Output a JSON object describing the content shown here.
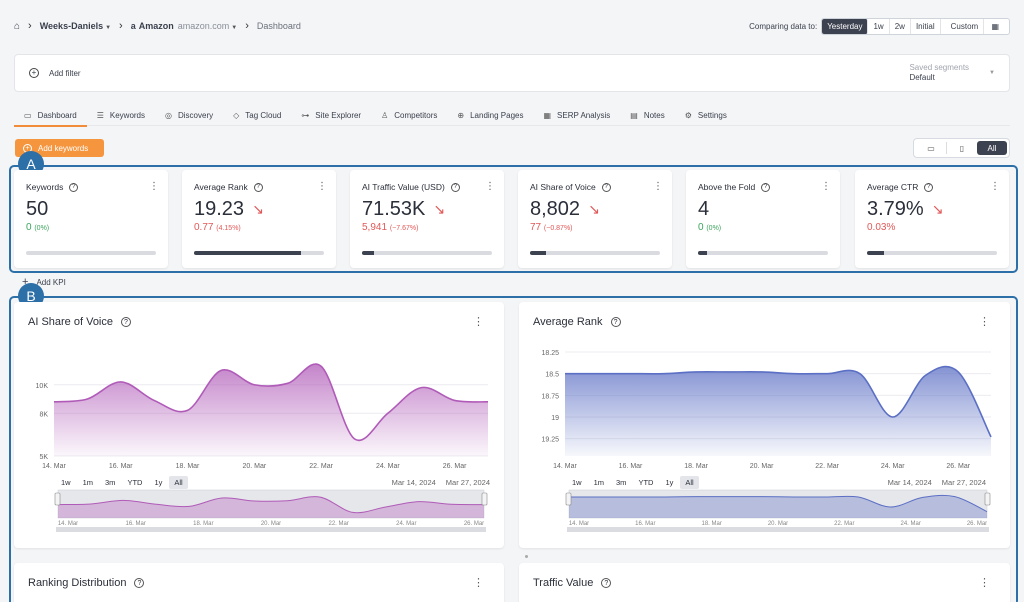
{
  "breadcrumb": {
    "project": "Weeks-Daniels",
    "site": "Amazon",
    "domain": "amazon.com",
    "page": "Dashboard"
  },
  "compare": {
    "label": "Comparing data to:",
    "options": [
      "Yesterday",
      "1w",
      "2w",
      "Initial",
      "Custom"
    ],
    "selected": "Yesterday"
  },
  "filter": {
    "add_label": "Add filter",
    "saved_label": "Saved segments",
    "saved_value": "Default"
  },
  "tabs": [
    {
      "label": "Dashboard",
      "icon": "monitor-icon"
    },
    {
      "label": "Keywords",
      "icon": "list-icon"
    },
    {
      "label": "Discovery",
      "icon": "compass-icon"
    },
    {
      "label": "Tag Cloud",
      "icon": "tag-icon"
    },
    {
      "label": "Site Explorer",
      "icon": "sitemap-icon"
    },
    {
      "label": "Competitors",
      "icon": "user-icon"
    },
    {
      "label": "Landing Pages",
      "icon": "target-icon"
    },
    {
      "label": "SERP Analysis",
      "icon": "calendar-icon"
    },
    {
      "label": "Notes",
      "icon": "note-icon"
    },
    {
      "label": "Settings",
      "icon": "gear-icon"
    }
  ],
  "add_keywords_label": "Add keywords",
  "device_all_label": "All",
  "annotations": {
    "a": "A",
    "b": "B"
  },
  "kpis": [
    {
      "title": "Keywords",
      "value": "50",
      "delta": "0",
      "delta_pct": "(0%)",
      "trend": "flat",
      "progress": 0
    },
    {
      "title": "Average Rank",
      "value": "19.23",
      "delta": "0.77",
      "delta_pct": "(4.15%)",
      "trend": "down",
      "progress": 0.82
    },
    {
      "title": "AI Traffic Value (USD)",
      "value": "71.53K",
      "delta": "5,941",
      "delta_pct": "(−7.67%)",
      "trend": "down",
      "progress": 0.09
    },
    {
      "title": "AI Share of Voice",
      "value": "8,802",
      "delta": "77",
      "delta_pct": "(−0.87%)",
      "trend": "down",
      "progress": 0.12
    },
    {
      "title": "Above the Fold",
      "value": "4",
      "delta": "0",
      "delta_pct": "(0%)",
      "trend": "flat",
      "progress": 0.07
    },
    {
      "title": "Average CTR",
      "value": "3.79%",
      "delta": "0.03%",
      "delta_pct": "",
      "trend": "down",
      "progress": 0.13
    }
  ],
  "add_kpi_label": "Add KPI",
  "zoom_buttons": [
    "1w",
    "1m",
    "3m",
    "YTD",
    "1y",
    "All"
  ],
  "zoom_selected": "All",
  "range": {
    "from": "Mar 14, 2024",
    "to": "Mar 27, 2024"
  },
  "navigator_labels": [
    "14. Mar",
    "16. Mar",
    "18. Mar",
    "20. Mar",
    "22. Mar",
    "24. Mar",
    "26. Mar"
  ],
  "bottom_panels": [
    "Ranking Distribution",
    "Traffic Value"
  ],
  "colors": {
    "accent": "#f5963f",
    "annotation": "#2d6fa7",
    "sov": "#b05bb8",
    "rank": "#5b6fc4"
  },
  "chart_data": [
    {
      "type": "area",
      "title": "AI Share of Voice",
      "x": [
        "14. Mar",
        "15. Mar",
        "16. Mar",
        "17. Mar",
        "18. Mar",
        "19. Mar",
        "20. Mar",
        "21. Mar",
        "22. Mar",
        "23. Mar",
        "24. Mar",
        "25. Mar",
        "26. Mar",
        "27. Mar"
      ],
      "values": [
        8800,
        9000,
        10200,
        8900,
        8200,
        11000,
        10000,
        10100,
        11300,
        6200,
        8000,
        9800,
        8900,
        8800
      ],
      "yticks": [
        "5K",
        "8K",
        "10K"
      ],
      "ytick_values": [
        5000,
        8000,
        10000
      ],
      "xticks": [
        "14. Mar",
        "16. Mar",
        "18. Mar",
        "20. Mar",
        "22. Mar",
        "24. Mar",
        "26. Mar"
      ],
      "ylim": [
        5000,
        13000
      ],
      "grid": true
    },
    {
      "type": "area",
      "title": "Average Rank",
      "x": [
        "14. Mar",
        "15. Mar",
        "16. Mar",
        "17. Mar",
        "18. Mar",
        "19. Mar",
        "20. Mar",
        "21. Mar",
        "22. Mar",
        "23. Mar",
        "24. Mar",
        "25. Mar",
        "26. Mar",
        "27. Mar"
      ],
      "values": [
        18.5,
        18.5,
        18.5,
        18.5,
        18.48,
        18.48,
        18.48,
        18.5,
        18.5,
        18.5,
        19.0,
        18.52,
        18.48,
        19.23
      ],
      "yticks": [
        "18.25",
        "18.5",
        "18.75",
        "19",
        "19.25"
      ],
      "ytick_values": [
        18.25,
        18.5,
        18.75,
        19,
        19.25
      ],
      "xticks": [
        "14. Mar",
        "16. Mar",
        "18. Mar",
        "20. Mar",
        "22. Mar",
        "24. Mar",
        "26. Mar"
      ],
      "ylim": [
        18.25,
        19.45
      ],
      "reversed": true,
      "grid": true
    }
  ]
}
